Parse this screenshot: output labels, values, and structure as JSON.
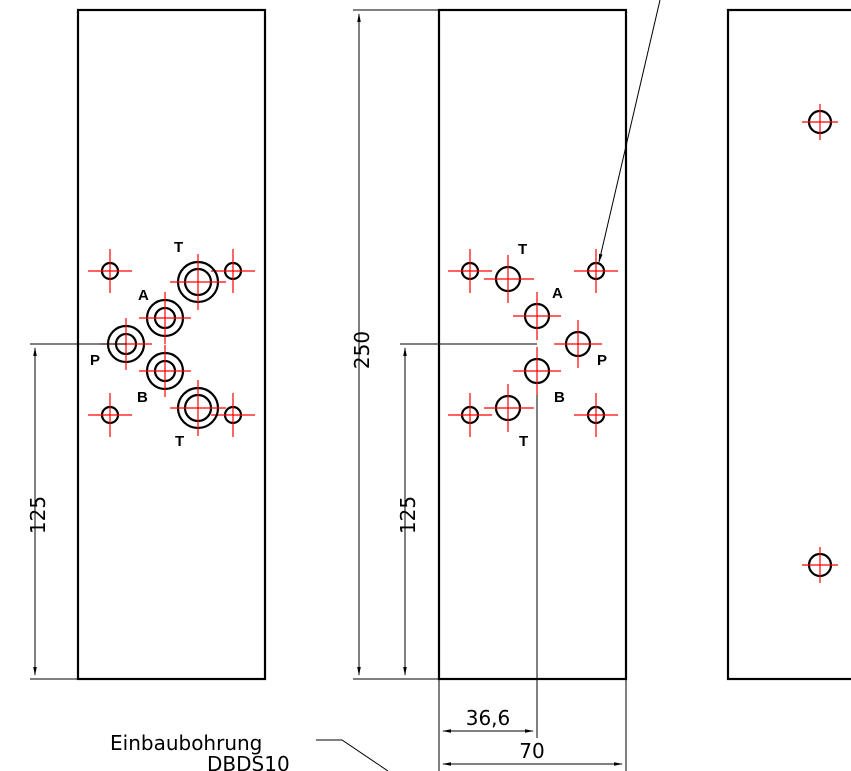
{
  "dimensions": {
    "d125_left": "125",
    "d250": "250",
    "d125_mid": "125",
    "d36": "36,6",
    "d70": "70"
  },
  "ports": {
    "left": {
      "T_top": "T",
      "A": "A",
      "P": "P",
      "B": "B",
      "T_bottom": "T"
    },
    "middle": {
      "T_top": "T",
      "A": "A",
      "P": "P",
      "B": "B",
      "T_bottom": "T"
    }
  },
  "callout": {
    "line1": "Einbaubohrung",
    "line2": "DBDS10"
  },
  "colors": {
    "outline": "#000000",
    "centerline": "#ff0000"
  }
}
